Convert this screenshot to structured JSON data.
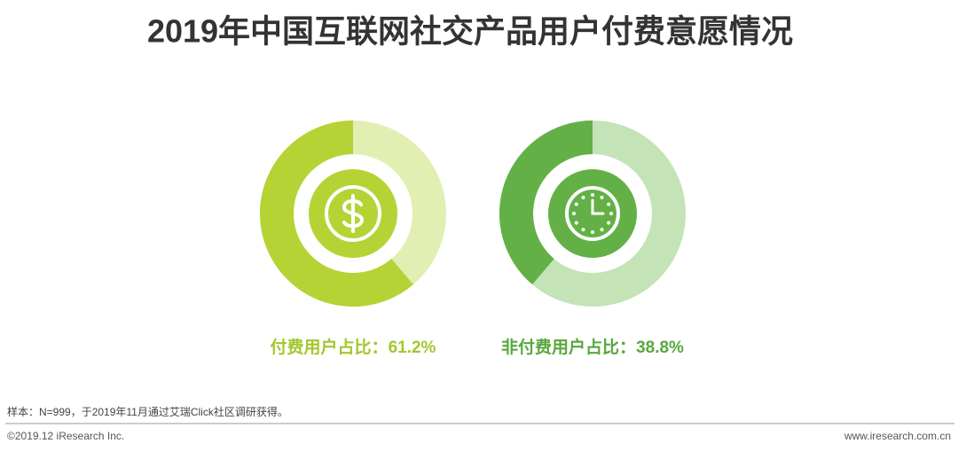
{
  "header": {
    "title": "2019年中国互联网社交产品用户付费意愿情况"
  },
  "chart_data": [
    {
      "type": "donut",
      "name": "付费用户占比：",
      "values": [
        61.2
      ],
      "value_labels": [
        "61.2%"
      ],
      "color": "#b5d334",
      "track_color": "#e1efb2",
      "label_color": "#a3c72e",
      "direction": "counterclockwise"
    },
    {
      "type": "donut",
      "name": "非付费用户占比：",
      "values": [
        38.8
      ],
      "value_labels": [
        "38.8%"
      ],
      "color": "#63b146",
      "track_color": "#c4e3b6",
      "label_color": "#58a83c",
      "direction": "counterclockwise"
    }
  ],
  "footer": {
    "note": "样本：N=999，于2019年11月通过艾瑞Click社区调研获得。",
    "copyright": "©2019.12 iResearch Inc.",
    "website": "www.iresearch.com.cn"
  }
}
